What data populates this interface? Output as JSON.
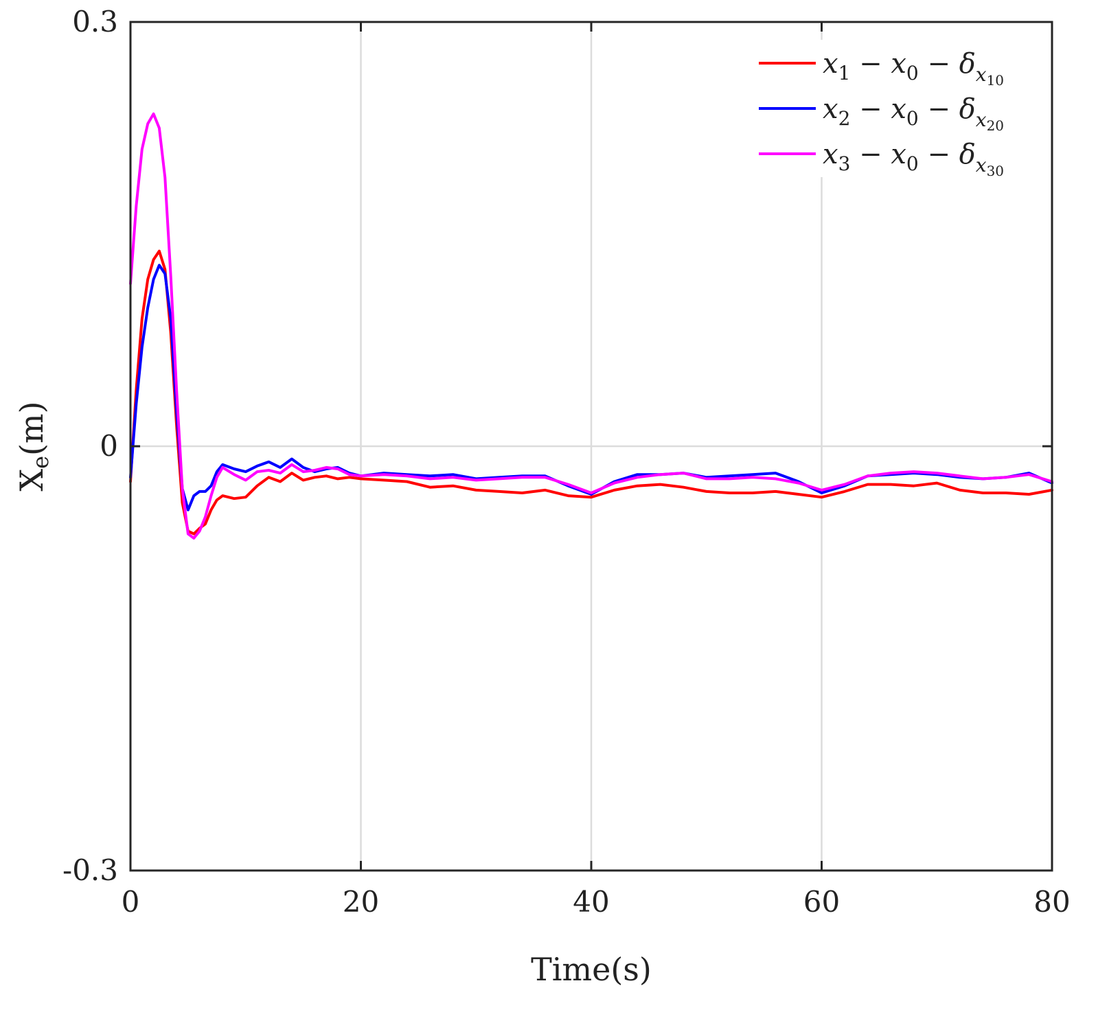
{
  "chart_data": {
    "type": "line",
    "xlabel": "Time(s)",
    "ylabel_main": "X",
    "ylabel_sub": "e",
    "ylabel_unit": "(m)",
    "xlim": [
      0,
      80
    ],
    "ylim": [
      -0.3,
      0.3
    ],
    "xticks": [
      0,
      20,
      40,
      60,
      80
    ],
    "yticks": [
      -0.3,
      0,
      0.3
    ],
    "ytick_labels": [
      "-0.3",
      "0",
      "0.3"
    ],
    "xtick_labels": [
      "0",
      "20",
      "40",
      "60",
      "80"
    ],
    "grid": true,
    "legend_position": "top-right",
    "series": [
      {
        "name": "x1 − x0 − δx10",
        "legend": {
          "a": "x",
          "a_sub": "1",
          "b": "x",
          "b_sub": "0",
          "c": "δ",
          "c_sub": "x",
          "c_subsub": "10"
        },
        "color": "#ff0000",
        "x": [
          0,
          0.5,
          1,
          1.5,
          2,
          2.5,
          3,
          3.5,
          4,
          4.5,
          5,
          5.5,
          6,
          6.5,
          7,
          7.5,
          8,
          9,
          10,
          11,
          12,
          13,
          14,
          15,
          16,
          17,
          18,
          19,
          20,
          22,
          24,
          26,
          28,
          30,
          32,
          34,
          36,
          38,
          40,
          42,
          44,
          46,
          48,
          50,
          52,
          54,
          56,
          58,
          60,
          62,
          64,
          66,
          68,
          70,
          72,
          74,
          76,
          78,
          80
        ],
        "y": [
          -0.025,
          0.04,
          0.09,
          0.118,
          0.132,
          0.138,
          0.125,
          0.08,
          0.015,
          -0.04,
          -0.06,
          -0.062,
          -0.058,
          -0.055,
          -0.045,
          -0.038,
          -0.035,
          -0.037,
          -0.036,
          -0.028,
          -0.022,
          -0.025,
          -0.019,
          -0.024,
          -0.022,
          -0.021,
          -0.023,
          -0.022,
          -0.023,
          -0.024,
          -0.025,
          -0.029,
          -0.028,
          -0.031,
          -0.032,
          -0.033,
          -0.031,
          -0.035,
          -0.036,
          -0.031,
          -0.028,
          -0.027,
          -0.029,
          -0.032,
          -0.033,
          -0.033,
          -0.032,
          -0.034,
          -0.036,
          -0.032,
          -0.027,
          -0.027,
          -0.028,
          -0.026,
          -0.031,
          -0.033,
          -0.033,
          -0.034,
          -0.031
        ]
      },
      {
        "name": "x2 − x0 − δx20",
        "legend": {
          "a": "x",
          "a_sub": "2",
          "b": "x",
          "b_sub": "0",
          "c": "δ",
          "c_sub": "x",
          "c_subsub": "20"
        },
        "color": "#0000ff",
        "x": [
          0,
          0.5,
          1,
          1.5,
          2,
          2.5,
          3,
          3.5,
          4,
          4.5,
          5,
          5.5,
          6,
          6.5,
          7,
          7.5,
          8,
          9,
          10,
          11,
          12,
          13,
          14,
          15,
          16,
          17,
          18,
          19,
          20,
          22,
          24,
          26,
          28,
          30,
          32,
          34,
          36,
          38,
          40,
          42,
          44,
          46,
          48,
          50,
          52,
          54,
          56,
          58,
          60,
          62,
          64,
          66,
          68,
          70,
          72,
          74,
          76,
          78,
          80
        ],
        "y": [
          -0.022,
          0.03,
          0.07,
          0.098,
          0.118,
          0.128,
          0.122,
          0.09,
          0.025,
          -0.03,
          -0.045,
          -0.035,
          -0.032,
          -0.032,
          -0.028,
          -0.018,
          -0.013,
          -0.016,
          -0.018,
          -0.014,
          -0.011,
          -0.015,
          -0.009,
          -0.015,
          -0.018,
          -0.016,
          -0.015,
          -0.019,
          -0.021,
          -0.019,
          -0.02,
          -0.021,
          -0.02,
          -0.023,
          -0.022,
          -0.021,
          -0.021,
          -0.028,
          -0.034,
          -0.025,
          -0.02,
          -0.02,
          -0.019,
          -0.022,
          -0.021,
          -0.02,
          -0.019,
          -0.025,
          -0.033,
          -0.028,
          -0.021,
          -0.02,
          -0.019,
          -0.02,
          -0.022,
          -0.023,
          -0.022,
          -0.019,
          -0.026
        ]
      },
      {
        "name": "x3 − x0 − δx30",
        "legend": {
          "a": "x",
          "a_sub": "3",
          "b": "x",
          "b_sub": "0",
          "c": "δ",
          "c_sub": "x",
          "c_subsub": "30"
        },
        "color": "#ff00ff",
        "x": [
          0,
          0.5,
          1,
          1.5,
          2,
          2.5,
          3,
          3.5,
          4,
          4.5,
          5,
          5.5,
          6,
          6.5,
          7,
          7.5,
          8,
          9,
          10,
          11,
          12,
          13,
          14,
          15,
          16,
          17,
          18,
          19,
          20,
          22,
          24,
          26,
          28,
          30,
          32,
          34,
          36,
          38,
          40,
          42,
          44,
          46,
          48,
          50,
          52,
          54,
          56,
          58,
          60,
          62,
          64,
          66,
          68,
          70,
          72,
          74,
          76,
          78,
          80
        ],
        "y": [
          0.115,
          0.17,
          0.21,
          0.228,
          0.235,
          0.225,
          0.19,
          0.12,
          0.04,
          -0.03,
          -0.062,
          -0.065,
          -0.06,
          -0.05,
          -0.035,
          -0.022,
          -0.015,
          -0.02,
          -0.024,
          -0.018,
          -0.017,
          -0.019,
          -0.013,
          -0.018,
          -0.017,
          -0.015,
          -0.016,
          -0.02,
          -0.021,
          -0.02,
          -0.021,
          -0.023,
          -0.022,
          -0.024,
          -0.023,
          -0.022,
          -0.022,
          -0.027,
          -0.033,
          -0.026,
          -0.022,
          -0.02,
          -0.019,
          -0.023,
          -0.023,
          -0.022,
          -0.023,
          -0.026,
          -0.031,
          -0.027,
          -0.021,
          -0.019,
          -0.018,
          -0.019,
          -0.021,
          -0.023,
          -0.022,
          -0.02,
          -0.025
        ]
      }
    ]
  }
}
